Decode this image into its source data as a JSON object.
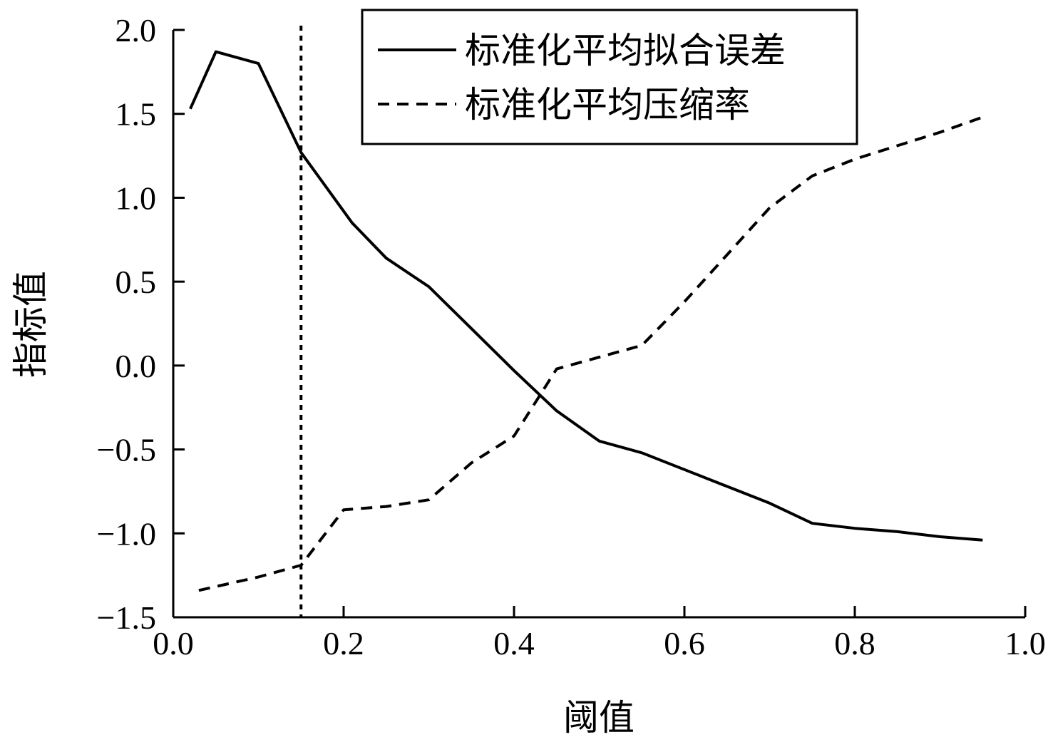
{
  "chart_data": {
    "type": "line",
    "title": "",
    "xlabel": "阈值",
    "ylabel": "指标值",
    "xlim": [
      0.0,
      1.0
    ],
    "ylim": [
      -1.5,
      2.0
    ],
    "xticks": [
      0.0,
      0.2,
      0.4,
      0.6,
      0.8,
      1.0
    ],
    "xtick_labels": [
      "0.0",
      "0.2",
      "0.4",
      "0.6",
      "0.8",
      "1.0"
    ],
    "yticks": [
      2.0,
      1.5,
      1.0,
      0.5,
      0.0,
      -0.5,
      -1.0,
      -1.5
    ],
    "ytick_labels": [
      "2.0",
      "1.5",
      "1.0",
      "0.5",
      "0.0",
      "−0.5",
      "−1.0",
      "−1.5"
    ],
    "grid": false,
    "legend_position": "top-right",
    "reference_line": {
      "x": 0.15,
      "style": "dotted"
    },
    "series": [
      {
        "name": "标准化平均拟合误差",
        "style": "solid",
        "color": "#000000",
        "points": [
          [
            0.02,
            1.53
          ],
          [
            0.05,
            1.87
          ],
          [
            0.1,
            1.8
          ],
          [
            0.15,
            1.27
          ],
          [
            0.21,
            0.85
          ],
          [
            0.25,
            0.64
          ],
          [
            0.3,
            0.47
          ],
          [
            0.35,
            0.22
          ],
          [
            0.4,
            -0.03
          ],
          [
            0.45,
            -0.27
          ],
          [
            0.5,
            -0.45
          ],
          [
            0.55,
            -0.52
          ],
          [
            0.6,
            -0.62
          ],
          [
            0.65,
            -0.72
          ],
          [
            0.7,
            -0.82
          ],
          [
            0.75,
            -0.94
          ],
          [
            0.8,
            -0.97
          ],
          [
            0.85,
            -0.99
          ],
          [
            0.9,
            -1.02
          ],
          [
            0.95,
            -1.04
          ]
        ]
      },
      {
        "name": "标准化平均压缩率",
        "style": "dashed",
        "color": "#000000",
        "points": [
          [
            0.03,
            -1.34
          ],
          [
            0.1,
            -1.26
          ],
          [
            0.15,
            -1.19
          ],
          [
            0.2,
            -0.86
          ],
          [
            0.25,
            -0.84
          ],
          [
            0.3,
            -0.8
          ],
          [
            0.35,
            -0.58
          ],
          [
            0.4,
            -0.42
          ],
          [
            0.45,
            -0.02
          ],
          [
            0.5,
            0.05
          ],
          [
            0.55,
            0.12
          ],
          [
            0.6,
            0.38
          ],
          [
            0.65,
            0.66
          ],
          [
            0.7,
            0.94
          ],
          [
            0.75,
            1.13
          ],
          [
            0.8,
            1.23
          ],
          [
            0.85,
            1.31
          ],
          [
            0.9,
            1.39
          ],
          [
            0.95,
            1.48
          ]
        ]
      }
    ]
  }
}
